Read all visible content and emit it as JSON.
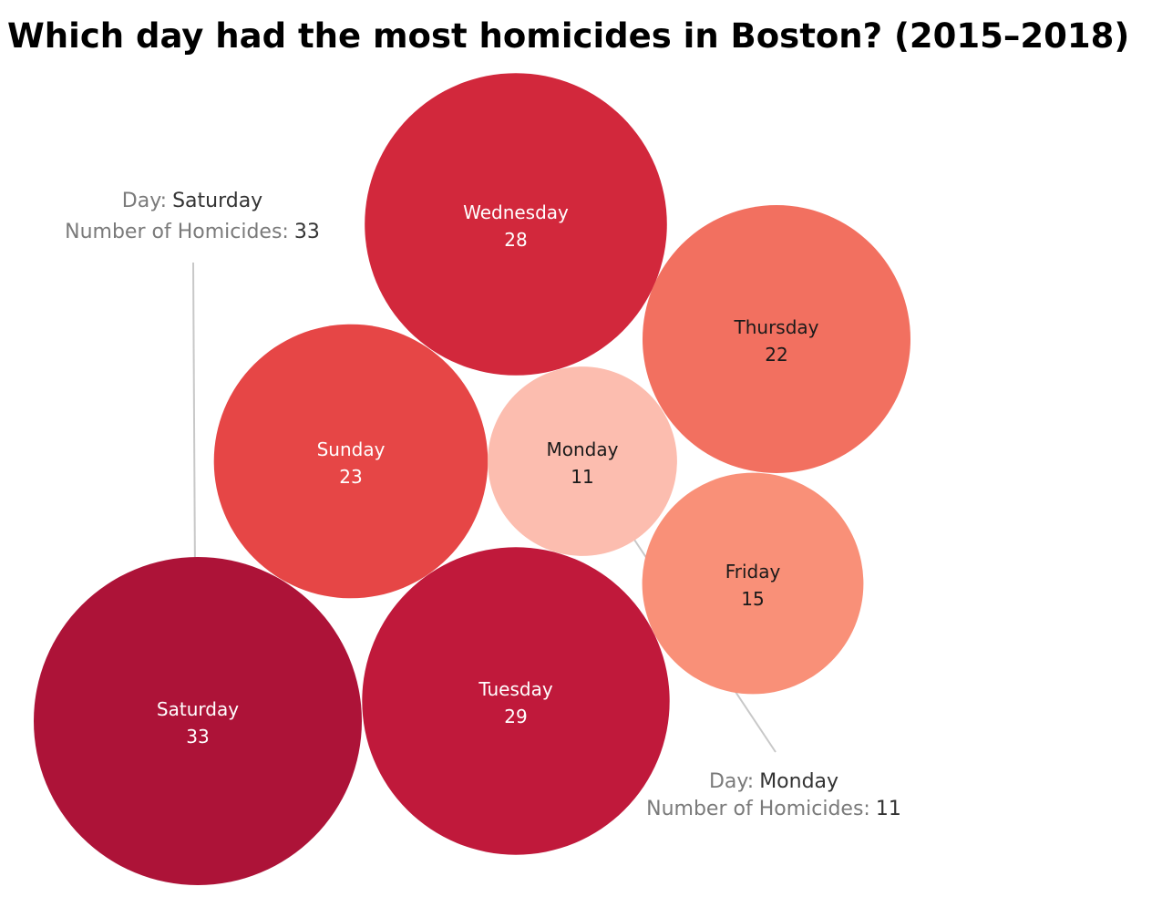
{
  "title": "Which day had the most homicides in Boston? (2015–2018)",
  "chart_data": {
    "type": "bubble",
    "title": "Which day had the most homicides in Boston? (2015–2018)",
    "measure_label": "Number of Homicides",
    "dimension_label": "Day",
    "color_scale": "sequential red (darker = more homicides)",
    "points": [
      {
        "day": "Saturday",
        "value": 33,
        "color": "#ad1338",
        "text_color": "#ffffff"
      },
      {
        "day": "Tuesday",
        "value": 29,
        "color": "#c0193b",
        "text_color": "#ffffff"
      },
      {
        "day": "Wednesday",
        "value": 28,
        "color": "#d2283c",
        "text_color": "#ffffff"
      },
      {
        "day": "Sunday",
        "value": 23,
        "color": "#e64646",
        "text_color": "#ffffff"
      },
      {
        "day": "Thursday",
        "value": 22,
        "color": "#f27060",
        "text_color": "#1a1a1a"
      },
      {
        "day": "Friday",
        "value": 15,
        "color": "#f99078",
        "text_color": "#1a1a1a"
      },
      {
        "day": "Monday",
        "value": 11,
        "color": "#fcbdaf",
        "text_color": "#1a1a1a"
      }
    ],
    "annotations": [
      {
        "target": "Saturday",
        "key_day": "Day:",
        "value_day": "Saturday",
        "key_count": "Number of Homicides:",
        "value_count": "33"
      },
      {
        "target": "Monday",
        "key_day": "Day:",
        "value_day": "Monday",
        "key_count": "Number of Homicides:",
        "value_count": "11"
      }
    ]
  }
}
